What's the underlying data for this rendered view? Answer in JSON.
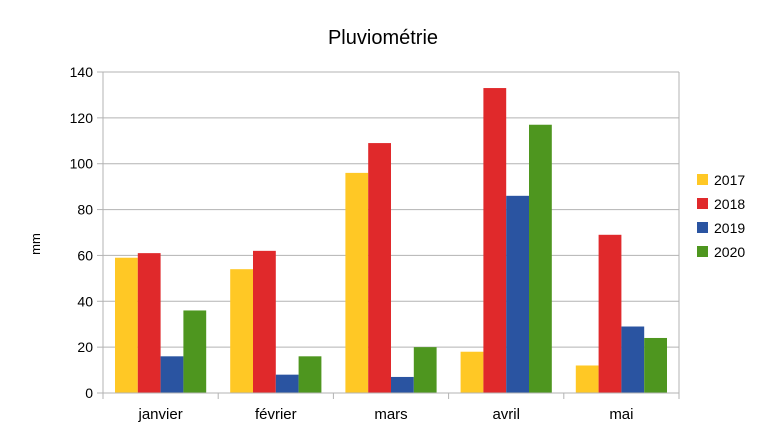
{
  "chart_data": {
    "type": "bar",
    "title": "Pluviométrie",
    "xlabel": "",
    "ylabel": "mm",
    "categories": [
      "janvier",
      "février",
      "mars",
      "avril",
      "mai"
    ],
    "ylim": [
      0,
      140
    ],
    "yticks": [
      0,
      20,
      40,
      60,
      80,
      100,
      120,
      140
    ],
    "grid": true,
    "legend_position": "right",
    "series": [
      {
        "name": "2017",
        "color": "#ffc825",
        "values": [
          59,
          54,
          96,
          18,
          12
        ]
      },
      {
        "name": "2018",
        "color": "#e0292b",
        "values": [
          61,
          62,
          109,
          133,
          69
        ]
      },
      {
        "name": "2019",
        "color": "#2a54a1",
        "values": [
          16,
          8,
          7,
          86,
          29
        ]
      },
      {
        "name": "2020",
        "color": "#4e961f",
        "values": [
          36,
          16,
          20,
          117,
          24
        ]
      }
    ]
  }
}
